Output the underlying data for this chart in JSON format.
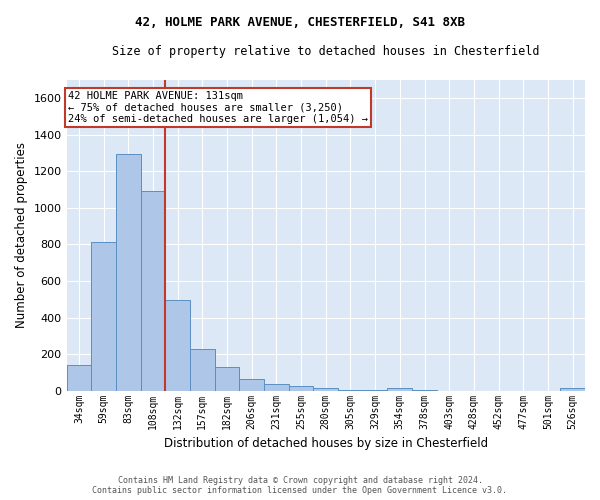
{
  "title1": "42, HOLME PARK AVENUE, CHESTERFIELD, S41 8XB",
  "title2": "Size of property relative to detached houses in Chesterfield",
  "xlabel": "Distribution of detached houses by size in Chesterfield",
  "ylabel": "Number of detached properties",
  "footer1": "Contains HM Land Registry data © Crown copyright and database right 2024.",
  "footer2": "Contains public sector information licensed under the Open Government Licence v3.0.",
  "categories": [
    "34sqm",
    "59sqm",
    "83sqm",
    "108sqm",
    "132sqm",
    "157sqm",
    "182sqm",
    "206sqm",
    "231sqm",
    "255sqm",
    "280sqm",
    "305sqm",
    "329sqm",
    "354sqm",
    "378sqm",
    "403sqm",
    "428sqm",
    "452sqm",
    "477sqm",
    "501sqm",
    "526sqm"
  ],
  "values": [
    140,
    815,
    1295,
    1095,
    495,
    230,
    130,
    65,
    37,
    27,
    14,
    3,
    3,
    14,
    2,
    0,
    0,
    0,
    0,
    0,
    14
  ],
  "bar_color": "#aec6e8",
  "bar_edge_color": "#5a8fc2",
  "vline_color": "#c0392b",
  "annotation_line1": "42 HOLME PARK AVENUE: 131sqm",
  "annotation_line2": "← 75% of detached houses are smaller (3,250)",
  "annotation_line3": "24% of semi-detached houses are larger (1,054) →",
  "annotation_box_color": "#c0392b",
  "vline_pos": 3.5,
  "ylim": [
    0,
    1700
  ],
  "yticks": [
    0,
    200,
    400,
    600,
    800,
    1000,
    1200,
    1400,
    1600
  ],
  "bg_color": "#dce8f5",
  "grid_color": "#ffffff"
}
